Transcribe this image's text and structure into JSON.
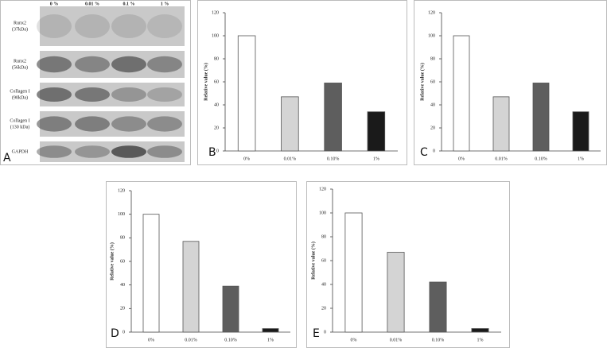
{
  "blot": {
    "label": "A",
    "columns": [
      "0 %",
      "0.01 %",
      "0.1 %",
      "1 %"
    ],
    "rows": [
      [
        "Runx2",
        "(37kDa)"
      ],
      [
        "Runx2",
        "(56kDa)"
      ],
      [
        "Collagen I",
        "(90kDa)"
      ],
      [
        "Collagen I",
        "(130 kDa)"
      ],
      [
        "GAPDH"
      ]
    ]
  },
  "chart_data": [
    {
      "type": "bar",
      "label": "B",
      "y_label": "Relative value (%)",
      "categories": [
        "0%",
        "0.01%",
        "0.10%",
        "1%"
      ],
      "values": [
        100,
        47,
        59,
        34
      ],
      "colors": [
        "#ffffff",
        "#d4d4d4",
        "#5e5e5e",
        "#1a1a1a"
      ],
      "ylim": [
        0,
        120
      ],
      "yticks": [
        0,
        20,
        40,
        60,
        80,
        100,
        120
      ]
    },
    {
      "type": "bar",
      "label": "C",
      "y_label": "Relative value (%)",
      "categories": [
        "0%",
        "0.01%",
        "0.10%",
        "1%"
      ],
      "values": [
        100,
        47,
        59,
        34
      ],
      "colors": [
        "#ffffff",
        "#d4d4d4",
        "#5e5e5e",
        "#1a1a1a"
      ],
      "ylim": [
        0,
        120
      ],
      "yticks": [
        0,
        20,
        40,
        60,
        80,
        100,
        120
      ]
    },
    {
      "type": "bar",
      "label": "D",
      "y_label": "Relative value (%)",
      "categories": [
        "0%",
        "0.01%",
        "0.10%",
        "1%"
      ],
      "values": [
        100,
        77,
        39,
        3
      ],
      "colors": [
        "#ffffff",
        "#d4d4d4",
        "#5e5e5e",
        "#1a1a1a"
      ],
      "ylim": [
        0,
        120
      ],
      "yticks": [
        0,
        20,
        40,
        60,
        80,
        100,
        120
      ]
    },
    {
      "type": "bar",
      "label": "E",
      "y_label": "Relative value (%)",
      "categories": [
        "0%",
        "0.01%",
        "0.10%",
        "1%"
      ],
      "values": [
        100,
        67,
        42,
        3
      ],
      "colors": [
        "#ffffff",
        "#d4d4d4",
        "#5e5e5e",
        "#1a1a1a"
      ],
      "ylim": [
        0,
        120
      ],
      "yticks": [
        0,
        20,
        40,
        60,
        80,
        100,
        120
      ]
    }
  ]
}
